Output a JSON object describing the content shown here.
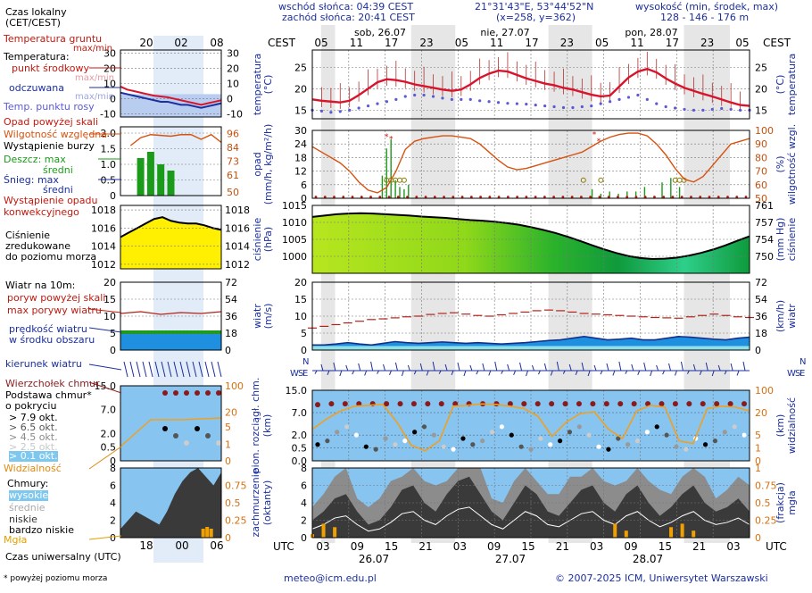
{
  "header": {
    "sunrise": "wschód słońca: 04:39 CEST",
    "sunset": "zachód słońca: 20:41 CEST",
    "coords": "21°31'43\"E, 53°44'52\"N",
    "grid": "(x=258,  y=362)",
    "height_title": "wysokość (min, środek, max)",
    "height_values": "128 - 146 - 176 m"
  },
  "legend": {
    "local_time": "Czas lokalny",
    "local_time_zone": "(CET/CEST)",
    "soil_temp": "Temperatura gruntu",
    "soil_temp_sub": "max/min",
    "temperature": "Temperatura:",
    "temp_mid": "punkt środkowy",
    "temp_maxmin": "max/min",
    "temp_felt": "odczuwana",
    "temp_felt_sub": "max/min",
    "dew_point": "Temp. punktu rosy",
    "precip_above": "Opad powyżej skali",
    "humidity": "Wilgotność względna",
    "storm": "Wystąpienie burzy",
    "rain_max": "Deszcz: max",
    "rain_mid": "średni",
    "snow_max": "Śnieg:   max",
    "snow_mid": "średni",
    "convective": "Wystąpienie opadu",
    "convective2": "konwekcyjnego",
    "pressure1": "Ciśnienie",
    "pressure2": "zredukowane",
    "pressure3": "do poziomu morza",
    "wind10": "Wiatr na 10m:",
    "gust_above": "poryw powyżej skali",
    "gust_max": "max porywy wiatru",
    "wind_mean1": "prędkość wiatru",
    "wind_mean2": "w środku obszaru",
    "wind_dir": "kierunek wiatru",
    "cloud_top": "Wierzchołek chmur",
    "cloud_base1": "Podstawa chmur*",
    "cloud_base2": "o pokryciu",
    "okt1": "> 7.9 okt.",
    "okt2": "> 6.5 okt.",
    "okt3": "> 4.5 okt.",
    "okt4": "> 2.5 okt.",
    "okt5": "> 0.1 okt.",
    "visibility": "Widzialność",
    "clouds": "Chmury:",
    "cl_high": "wysokie",
    "cl_mid": "średnie",
    "cl_low": "niskie",
    "cl_vlow": "bardzo niskie",
    "fog": "Mgła",
    "utc_time": "Czas uniwersalny (UTC)",
    "footnote": "* powyżej poziomu morza"
  },
  "legend_ticks": {
    "top_local": [
      "20",
      "02",
      "08"
    ],
    "bottom_utc": [
      "18",
      "00",
      "06"
    ]
  },
  "axis_titles": {
    "temp_l": "temperatura",
    "temp_l_u": "(°C)",
    "temp_r": "temperatura",
    "temp_r_u": "(°C)",
    "precip_l": "opad",
    "precip_l_u": "(mm/h, kg/m²/h)",
    "hum_r": "wilgotność wzgl.",
    "hum_r_u": "(%)",
    "pres_l": "ciśnienie",
    "pres_l_u": "(hPa)",
    "pres_r": "ciśnienie",
    "pres_r_u": "(mm Hg)",
    "wind_l": "wiatr",
    "wind_l_u": "(m/s)",
    "wind_r": "wiatr",
    "wind_r_u": "(km/h)",
    "cloud_l": "pion. rozciągł. chm.",
    "cloud_l_u": "(km)",
    "vis_r": "widzialność",
    "vis_r_u": "(km)",
    "cov_l": "zachmurzenie",
    "cov_l_u": "(oktanty)",
    "fog_r": "mgła",
    "fog_r_u": "(frakcja)",
    "dir_l": "W",
    "dir_l2": "S",
    "dir_l3": "N",
    "dir_l4": "E",
    "dir_r": "W",
    "dir_r2": "S",
    "dir_r3": "N",
    "dir_r4": "E"
  },
  "timeline": {
    "cest_label": "CEST",
    "utc_label": "UTC",
    "top_hours": [
      "05",
      "11",
      "17",
      "23",
      "05",
      "11",
      "17",
      "23",
      "05",
      "11",
      "17",
      "23",
      "05"
    ],
    "days_top": [
      "sob, 26.07",
      "nie, 27.07",
      "pon, 28.07"
    ],
    "bottom_hours": [
      "03",
      "09",
      "15",
      "21",
      "03",
      "09",
      "15",
      "21",
      "03",
      "09",
      "15",
      "21",
      "03"
    ],
    "days_bottom": [
      "26.07",
      "27.07",
      "28.07"
    ]
  },
  "footer": {
    "email": "meteo@icm.edu.pl",
    "copyright": "© 2007-2025 ICM, Uniwersytet Warszawski"
  },
  "chart_data": [
    {
      "type": "line",
      "panel": "temperature",
      "ylim": [
        13,
        29
      ],
      "yticks": [
        15,
        20,
        25
      ],
      "series": [
        {
          "name": "punkt środkowy",
          "color": "#d8142c",
          "values": [
            17.5,
            17.2,
            17,
            16.8,
            17.2,
            18.5,
            20.0,
            21.5,
            22.2,
            22.0,
            21.6,
            21.0,
            20.6,
            20.2,
            19.8,
            19.5,
            19.8,
            21.0,
            22.5,
            23.5,
            24.2,
            24.0,
            23.2,
            22.4,
            21.8,
            21.2,
            20.8,
            20.2,
            19.8,
            19.2,
            18.6,
            18.2,
            18.4,
            20.5,
            22.6,
            24.0,
            24.6,
            23.8,
            22.4,
            21.2,
            20.2,
            19.5,
            18.8,
            18.2,
            17.5,
            16.8,
            16.2,
            16.0
          ]
        },
        {
          "name": "Temp. punktu rosy",
          "color": "#5b59d8",
          "values": [
            15,
            14.8,
            14.5,
            14.7,
            15,
            15.5,
            16,
            16.5,
            17,
            17.5,
            18.2,
            18.5,
            18.5,
            18.2,
            17.8,
            17.5,
            17.5,
            17.5,
            17.2,
            17,
            16.8,
            16.6,
            16.5,
            16.4,
            16.2,
            16,
            15.8,
            15.6,
            15.6,
            15.8,
            16,
            16.5,
            17,
            17.5,
            18,
            18.5,
            17.5,
            16.5,
            15.8,
            15.5,
            15.2,
            15,
            15,
            15.2,
            15.4,
            15.2,
            15,
            15
          ]
        }
      ]
    },
    {
      "type": "line",
      "panel": "precipitation-humidity",
      "ylim": [
        0,
        30
      ],
      "yticks": [
        0,
        6,
        12,
        18,
        24,
        30
      ],
      "y2ticks": [
        50,
        60,
        70,
        80,
        90,
        100
      ],
      "series": [
        {
          "name": "Wilgotność względna",
          "color": "#d6520f",
          "values": [
            88,
            84,
            80,
            76,
            70,
            62,
            56,
            54,
            58,
            70,
            86,
            92,
            94,
            95,
            96,
            96,
            95,
            94,
            90,
            84,
            78,
            73,
            71,
            72,
            74,
            76,
            78,
            80,
            82,
            84,
            88,
            92,
            95,
            97,
            98,
            98,
            96,
            90,
            82,
            72,
            64,
            62,
            66,
            74,
            82,
            90,
            92,
            94
          ]
        }
      ]
    },
    {
      "type": "area",
      "panel": "pressure",
      "ylim": [
        995,
        1015
      ],
      "yticks": [
        1000,
        1005,
        1010,
        1015
      ],
      "y2ticks": [
        750,
        754,
        757,
        761
      ],
      "series": [
        {
          "name": "Ciśnienie",
          "values": [
            1011.6,
            1012.0,
            1012.4,
            1012.6,
            1012.7,
            1012.6,
            1012.4,
            1012.2,
            1012.0,
            1011.7,
            1011.5,
            1011.3,
            1011.0,
            1010.7,
            1010.5,
            1010.2,
            1009.8,
            1009.3,
            1008.6,
            1007.8,
            1006.9,
            1005.8,
            1004.6,
            1003.3,
            1002.1,
            1001.0,
            1000.1,
            999.5,
            999.2,
            999.3,
            999.6,
            1000.2,
            1001.0,
            1002.0,
            1003.2,
            1004.6,
            1005.9
          ]
        }
      ]
    },
    {
      "type": "area",
      "panel": "wind",
      "ylim": [
        0,
        20
      ],
      "yticks": [
        0,
        5,
        10,
        15,
        20
      ],
      "y2ticks": [
        0,
        18,
        36,
        54,
        72
      ],
      "series": [
        {
          "name": "prędkość wiatru",
          "values": [
            1.5,
            1.5,
            1.8,
            2.2,
            1.8,
            1.5,
            2.0,
            2.5,
            2.2,
            2.0,
            2.2,
            2.4,
            2.2,
            2.0,
            2.2,
            2.0,
            1.8,
            2.0,
            2.2,
            2.5,
            2.8,
            3.0,
            3.5,
            4.0,
            3.5,
            3.0,
            3.2,
            3.5,
            3.0,
            3.0,
            3.5,
            4.0,
            3.8,
            3.5,
            3.2,
            3.0,
            3.5,
            3.8
          ]
        },
        {
          "name": "max porywy wiatru",
          "values": [
            6.5,
            7.0,
            7.5,
            8.0,
            8.5,
            9.0,
            9.2,
            9.5,
            9.8,
            10,
            10.5,
            10.8,
            11.0,
            10.6,
            10.2,
            10.0,
            10.4,
            10.8,
            11.2,
            11.6,
            11.8,
            11.6,
            11.2,
            10.8,
            10.6,
            10.4,
            10.2,
            10.0,
            9.8,
            9.6,
            9.5,
            9.4,
            9.8,
            10.2,
            10.6,
            10.2,
            9.8,
            9.6
          ]
        }
      ]
    },
    {
      "type": "scatter",
      "panel": "clouds-visibility",
      "ylim": [
        0,
        15
      ],
      "yticks": [
        0,
        0.5,
        2.0,
        7.0,
        15.0
      ],
      "y2ticks": [
        0,
        1,
        5,
        20,
        100
      ],
      "series": [
        {
          "name": "Wierzchołek chmur",
          "values": [
            9.5,
            9.8,
            9.8,
            9.8,
            9.8,
            9.8,
            9.8,
            9.8,
            9.8,
            9.8,
            9.8,
            9.8,
            9.8,
            9.8,
            9.8,
            9.8,
            9.8,
            9.8,
            9.8,
            9.8,
            9.8,
            9.8,
            9.8,
            9.8,
            9.8,
            9.8,
            9.8,
            9.8,
            9.8,
            9.8,
            9.8,
            9.8
          ]
        },
        {
          "name": "Widzialność",
          "values": [
            20,
            35,
            50,
            60,
            62,
            64,
            30,
            5,
            2,
            8,
            60,
            62,
            65,
            64,
            60,
            55,
            40,
            12,
            30,
            45,
            48,
            20,
            10,
            50,
            62,
            58,
            8,
            6,
            55,
            60,
            58,
            50
          ]
        }
      ]
    },
    {
      "type": "area",
      "panel": "cloud-cover",
      "ylim": [
        0,
        8
      ],
      "yticks": [
        0,
        2,
        4,
        6,
        8
      ],
      "y2ticks": [
        0,
        0.25,
        0.5,
        0.75,
        1
      ],
      "series": [
        {
          "name": "niskie",
          "values": [
            2,
            3,
            4.5,
            5,
            3,
            1.5,
            2,
            3.5,
            5.5,
            6,
            4,
            3,
            5,
            6.5,
            7,
            5,
            3,
            2,
            4,
            6,
            5,
            3,
            2.5,
            4,
            5.5,
            6,
            4,
            3,
            5,
            6,
            4,
            2.5,
            3.5,
            5,
            6,
            4,
            3,
            3.5,
            4.5,
            3
          ]
        },
        {
          "name": "Mgła",
          "values": [
            0.05,
            0.2,
            0.15,
            0,
            0,
            0,
            0,
            0,
            0,
            0,
            0,
            0,
            0,
            0,
            0,
            0,
            0,
            0,
            0,
            0,
            0,
            0,
            0,
            0,
            0,
            0,
            0,
            0.2,
            0.1,
            0,
            0,
            0,
            0.15,
            0.2,
            0.1,
            0,
            0,
            0,
            0,
            0
          ]
        }
      ]
    }
  ]
}
